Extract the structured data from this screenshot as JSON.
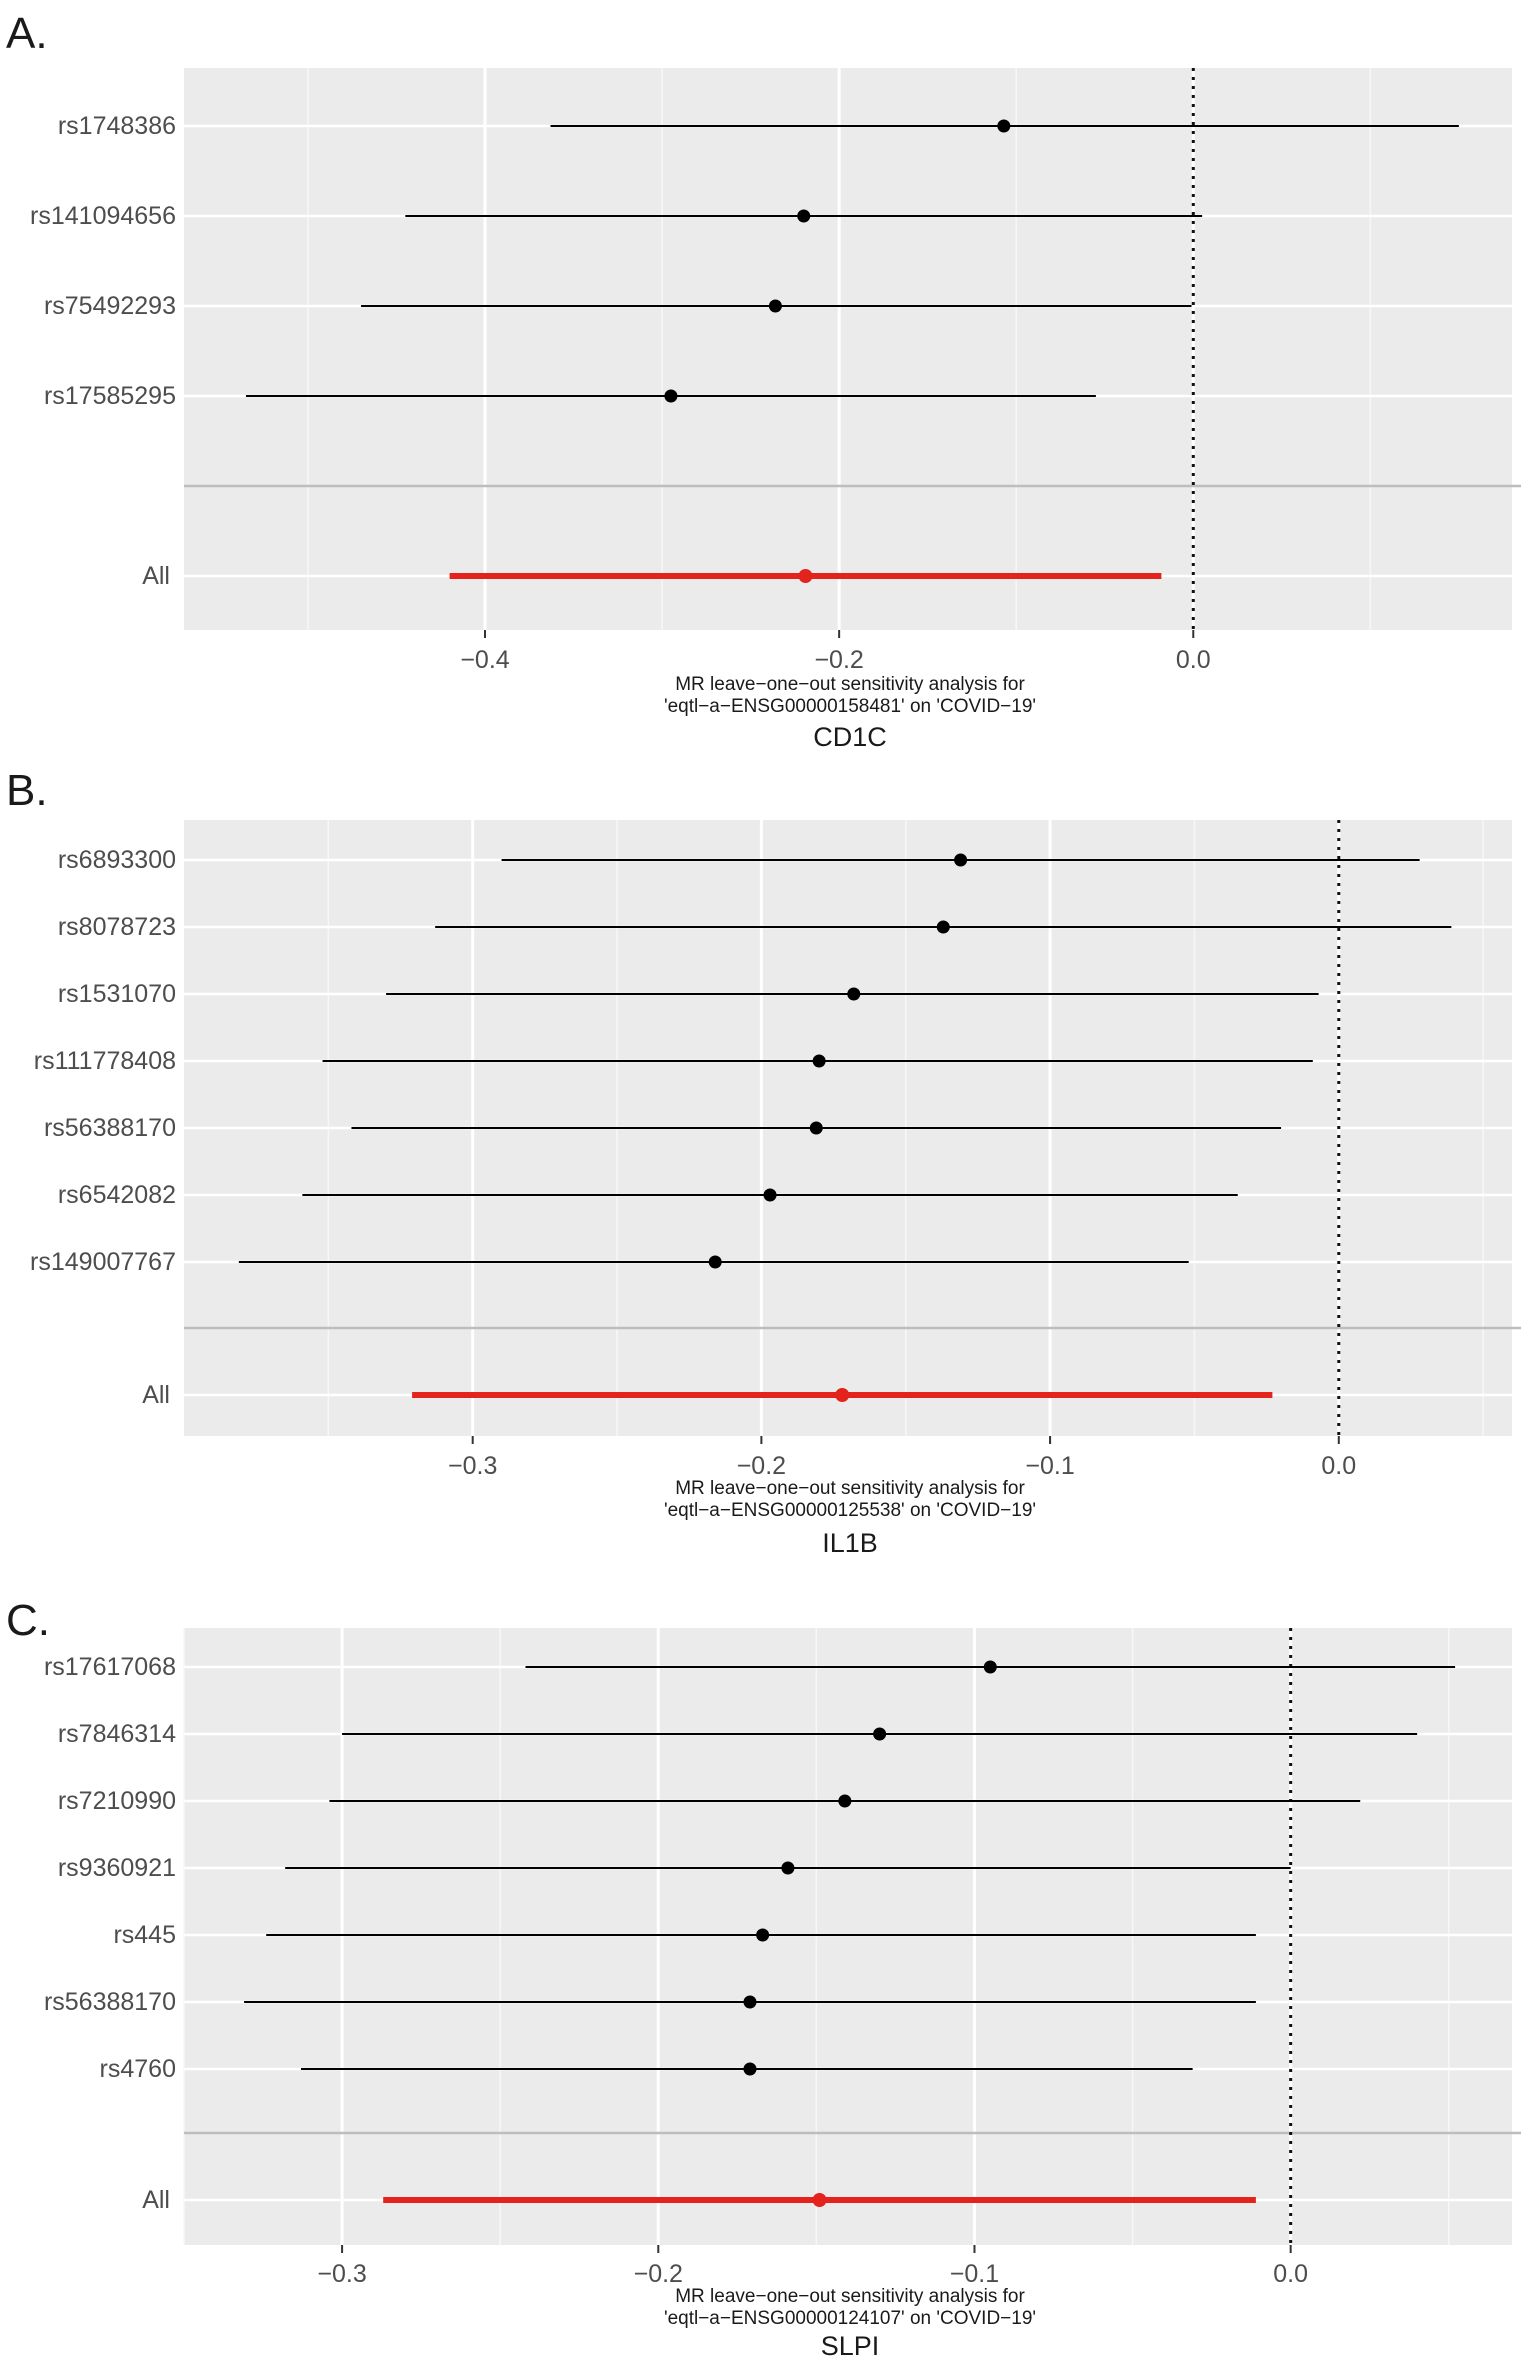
{
  "chart_data": [
    {
      "panel_label": "A.",
      "type": "forest",
      "title": "",
      "xlabel": "MR leave−one−out sensitivity analysis for\n'eqtl−a−ENSG00000158481' on 'COVID−19'",
      "caption": "CD1C",
      "xlim": [
        -0.57,
        0.18
      ],
      "x_ticks": [
        -0.4,
        -0.2,
        0.0
      ],
      "x_tick_labels": [
        "−0.4",
        "−0.2",
        "0.0"
      ],
      "reference_line": 0.0,
      "grid": true,
      "rows": [
        {
          "label": "rs1748386",
          "estimate": -0.107,
          "ci_low": -0.363,
          "ci_high": 0.15
        },
        {
          "label": "rs141094656",
          "estimate": -0.22,
          "ci_low": -0.445,
          "ci_high": 0.005
        },
        {
          "label": "rs75492293",
          "estimate": -0.236,
          "ci_low": -0.47,
          "ci_high": -0.001
        },
        {
          "label": "rs17585295",
          "estimate": -0.295,
          "ci_low": -0.535,
          "ci_high": -0.055
        }
      ],
      "overall": {
        "label": "All",
        "estimate": -0.219,
        "ci_low": -0.42,
        "ci_high": -0.018
      }
    },
    {
      "panel_label": "B.",
      "type": "forest",
      "title": "",
      "xlabel": "MR leave−one−out sensitivity analysis for\n'eqtl−a−ENSG00000125538' on 'COVID−19'",
      "caption": "IL1B",
      "xlim": [
        -0.4,
        0.06
      ],
      "x_ticks": [
        -0.3,
        -0.2,
        -0.1,
        0.0
      ],
      "x_tick_labels": [
        "−0.3",
        "−0.2",
        "−0.1",
        "0.0"
      ],
      "reference_line": 0.0,
      "grid": true,
      "rows": [
        {
          "label": "rs6893300",
          "estimate": -0.131,
          "ci_low": -0.29,
          "ci_high": 0.028
        },
        {
          "label": "rs8078723",
          "estimate": -0.137,
          "ci_low": -0.313,
          "ci_high": 0.039
        },
        {
          "label": "rs1531070",
          "estimate": -0.168,
          "ci_low": -0.33,
          "ci_high": -0.007
        },
        {
          "label": "rs111778408",
          "estimate": -0.18,
          "ci_low": -0.352,
          "ci_high": -0.009
        },
        {
          "label": "rs56388170",
          "estimate": -0.181,
          "ci_low": -0.342,
          "ci_high": -0.02
        },
        {
          "label": "rs6542082",
          "estimate": -0.197,
          "ci_low": -0.359,
          "ci_high": -0.035
        },
        {
          "label": "rs149007767",
          "estimate": -0.216,
          "ci_low": -0.381,
          "ci_high": -0.052
        }
      ],
      "overall": {
        "label": "All",
        "estimate": -0.172,
        "ci_low": -0.321,
        "ci_high": -0.023
      }
    },
    {
      "panel_label": "C.",
      "type": "forest",
      "title": "",
      "xlabel": "MR leave−one−out sensitivity analysis for\n'eqtl−a−ENSG00000124107' on 'COVID−19'",
      "caption": "SLPI",
      "xlim": [
        -0.35,
        0.07
      ],
      "x_ticks": [
        -0.3,
        -0.2,
        -0.1,
        0.0
      ],
      "x_tick_labels": [
        "−0.3",
        "−0.2",
        "−0.1",
        "0.0"
      ],
      "reference_line": 0.0,
      "grid": true,
      "rows": [
        {
          "label": "rs17617068",
          "estimate": -0.095,
          "ci_low": -0.242,
          "ci_high": 0.052
        },
        {
          "label": "rs7846314",
          "estimate": -0.13,
          "ci_low": -0.3,
          "ci_high": 0.04
        },
        {
          "label": "rs7210990",
          "estimate": -0.141,
          "ci_low": -0.304,
          "ci_high": 0.022
        },
        {
          "label": "rs9360921",
          "estimate": -0.159,
          "ci_low": -0.318,
          "ci_high": 0.0
        },
        {
          "label": "rs445",
          "estimate": -0.167,
          "ci_low": -0.324,
          "ci_high": -0.011
        },
        {
          "label": "rs56388170",
          "estimate": -0.171,
          "ci_low": -0.331,
          "ci_high": -0.011
        },
        {
          "label": "rs4760",
          "estimate": -0.171,
          "ci_low": -0.313,
          "ci_high": -0.031
        }
      ],
      "overall": {
        "label": "All",
        "estimate": -0.149,
        "ci_low": -0.287,
        "ci_high": -0.011
      }
    }
  ]
}
